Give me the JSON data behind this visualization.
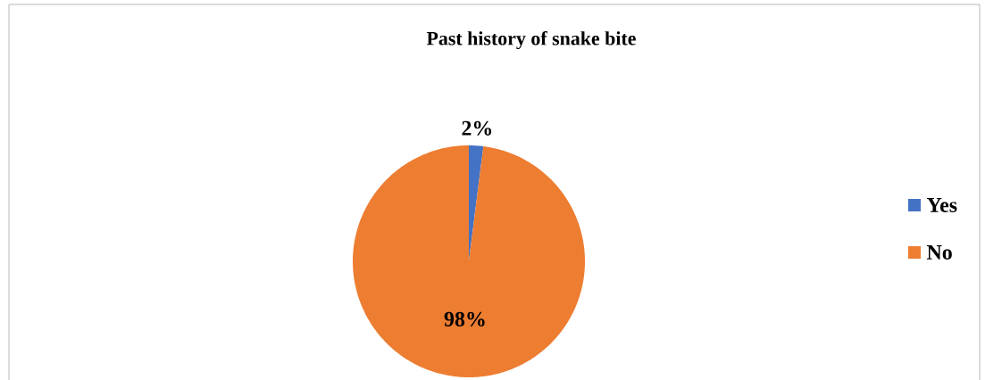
{
  "chart_data": {
    "type": "pie",
    "title": "Past history of snake bite",
    "categories": [
      "Yes",
      "No"
    ],
    "values": [
      2,
      98
    ],
    "colors": [
      "#4472c4",
      "#ed7d31"
    ],
    "value_labels": [
      "2%",
      "98%"
    ],
    "legend": "right"
  }
}
